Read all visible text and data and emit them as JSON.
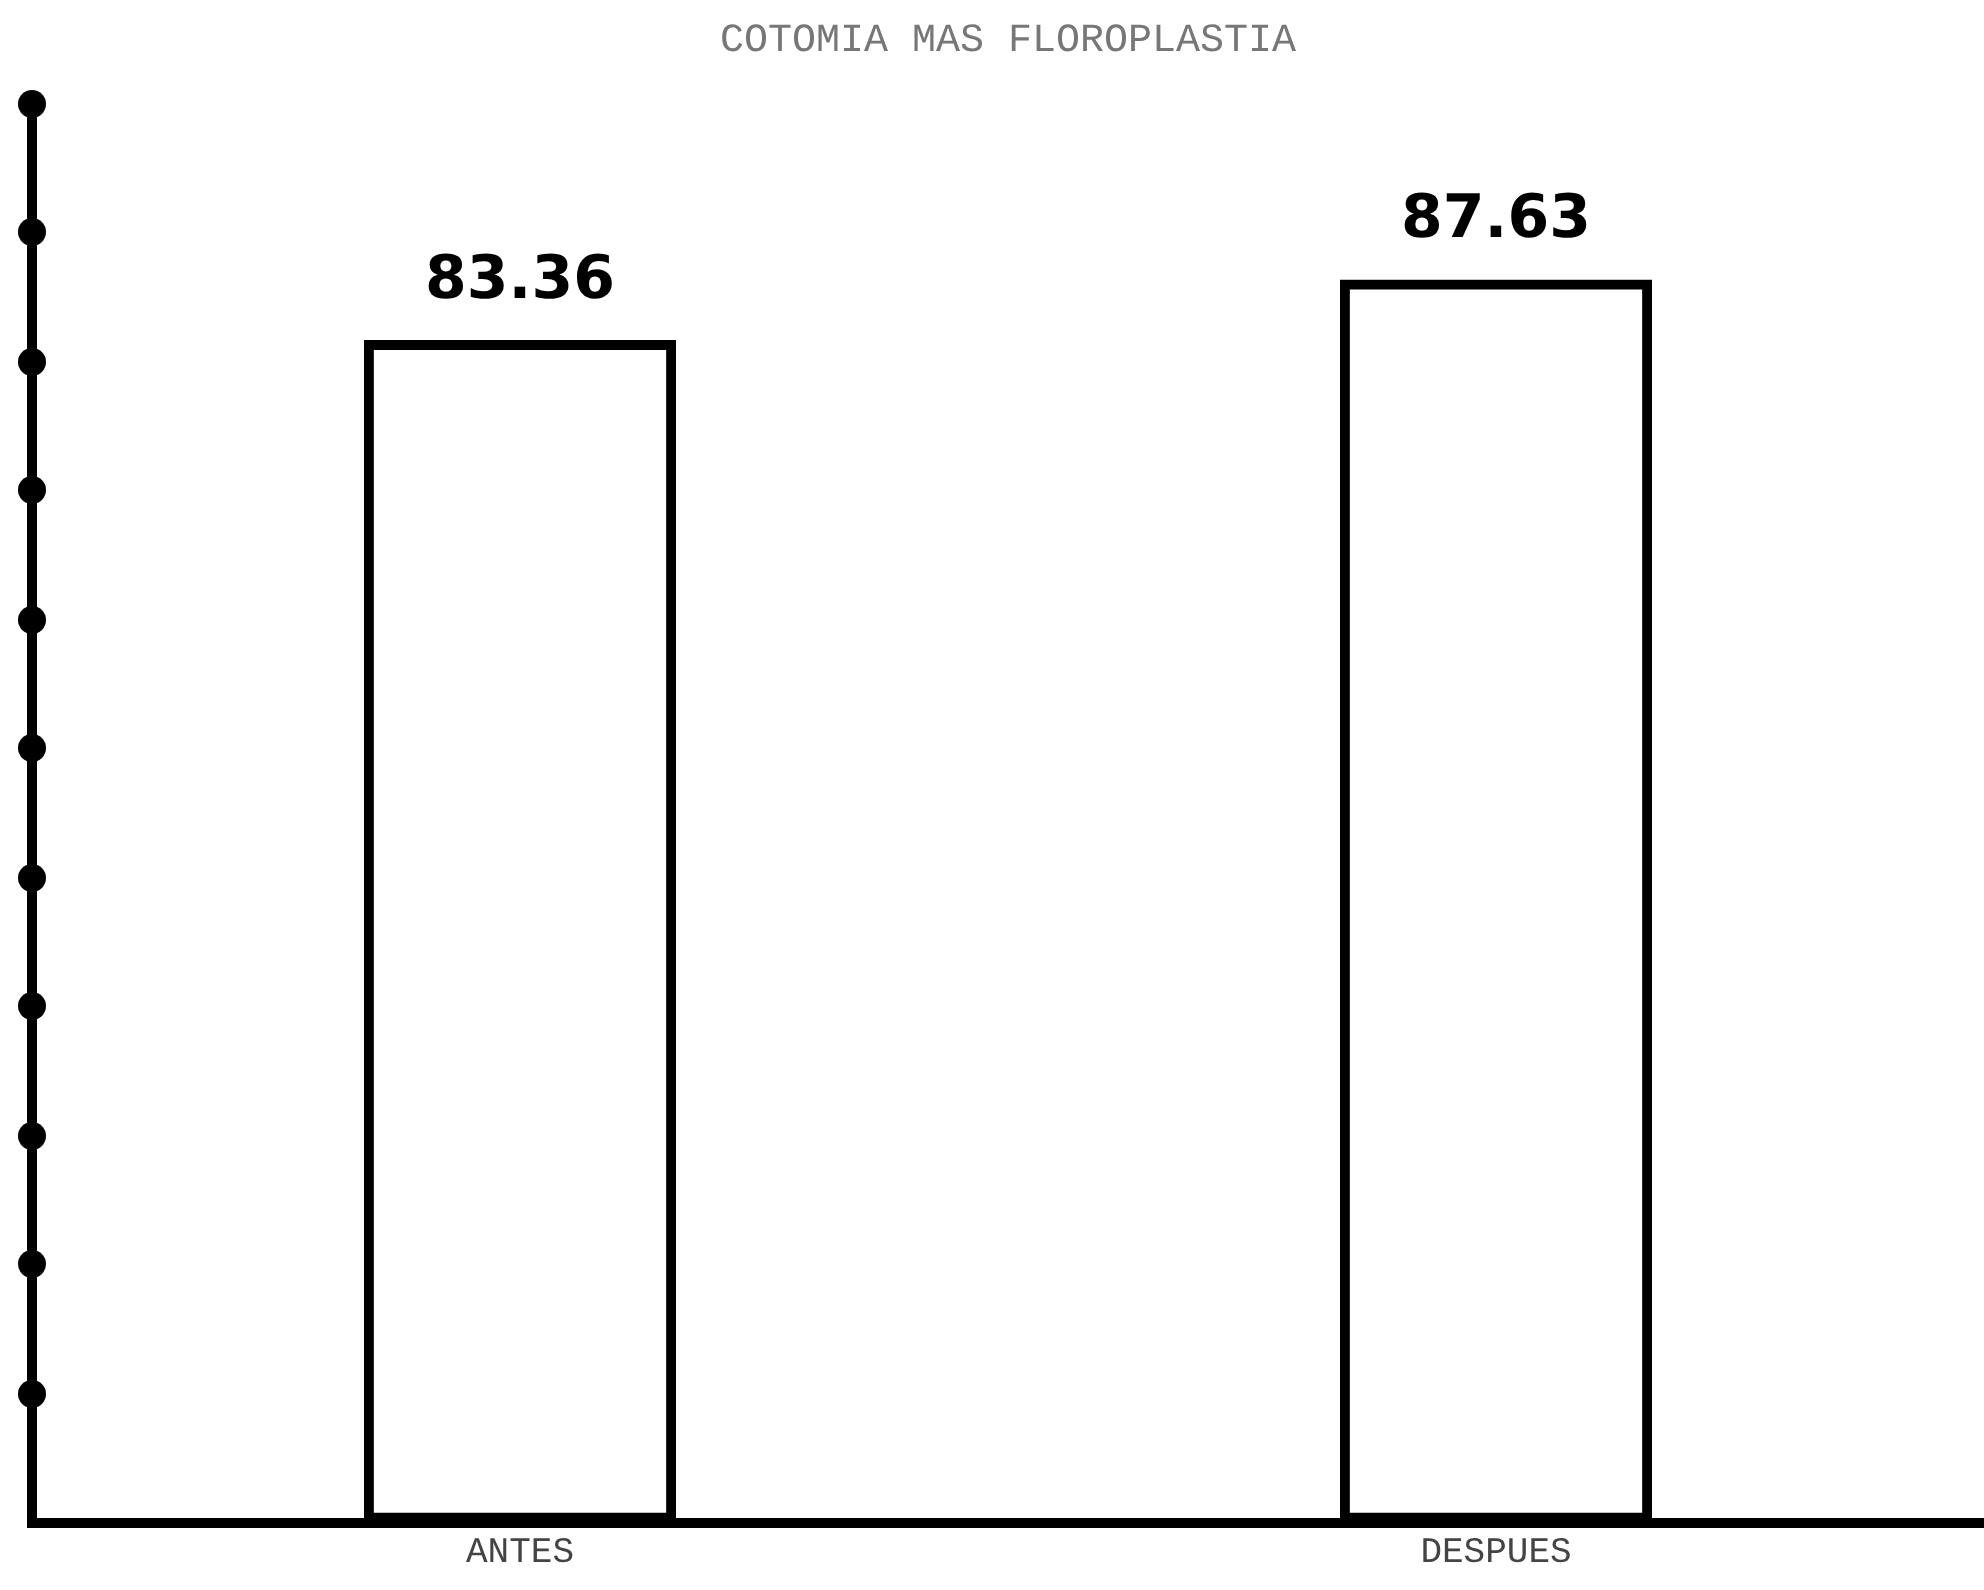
{
  "chart_data": {
    "type": "bar",
    "title": "COTOMIA MAS FLOROPLASTIA",
    "categories": [
      "ANTES",
      "DESPUES"
    ],
    "values": [
      83.36,
      87.63
    ],
    "color": "#000000",
    "tick_labels": "x",
    "data_labels": true,
    "grid": false,
    "legend": false
  }
}
